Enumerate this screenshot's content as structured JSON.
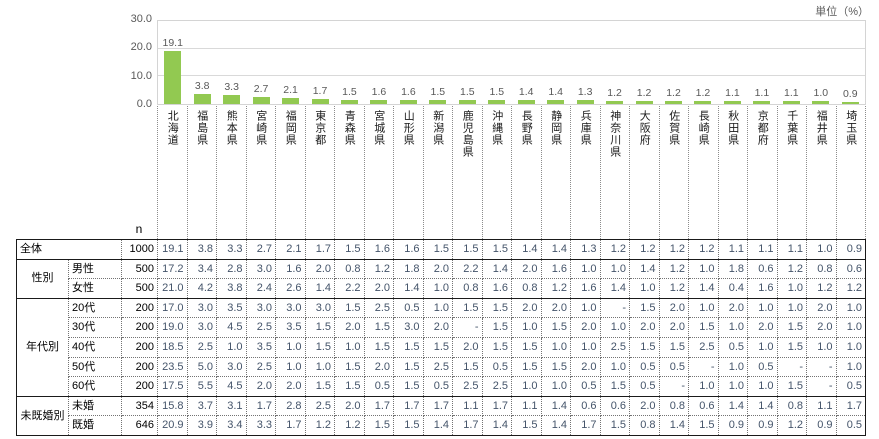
{
  "unit_label": "単位（%）",
  "chart_data": {
    "type": "bar",
    "title": "",
    "xlabel": "",
    "ylabel": "",
    "unit": "単位（%）",
    "ylim": [
      0,
      30
    ],
    "y_ticks": [
      "30.0",
      "20.0",
      "10.0",
      "0.0"
    ],
    "grid": true,
    "legend_position": "none",
    "bar_color": "#92c951",
    "categories": [
      "北海道",
      "福島県",
      "熊本県",
      "宮崎県",
      "福岡県",
      "東京都",
      "青森県",
      "宮城県",
      "山形県",
      "新潟県",
      "鹿児島県",
      "沖縄県",
      "長野県",
      "静岡県",
      "兵庫県",
      "神奈川県",
      "大阪府",
      "佐賀県",
      "長崎県",
      "秋田県",
      "京都府",
      "千葉県",
      "福井県",
      "埼玉県"
    ],
    "values": [
      19.1,
      3.8,
      3.3,
      2.7,
      2.1,
      1.7,
      1.5,
      1.6,
      1.6,
      1.5,
      1.5,
      1.5,
      1.4,
      1.4,
      1.3,
      1.2,
      1.2,
      1.2,
      1.2,
      1.1,
      1.1,
      1.1,
      1.0,
      0.9
    ],
    "bar_labels": [
      "19.1",
      "3.8",
      "3.3",
      "2.7",
      "2.1",
      "1.7",
      "1.5",
      "1.6",
      "1.6",
      "1.5",
      "1.5",
      "1.5",
      "1.4",
      "1.4",
      "1.3",
      "1.2",
      "1.2",
      "1.2",
      "1.2",
      "1.1",
      "1.1",
      "1.1",
      "1.0",
      "0.9"
    ]
  },
  "table": {
    "n_header": "n",
    "rows": [
      {
        "group": "全体",
        "group_rowspan": 1,
        "group_colspan": 2,
        "label": null,
        "n": "1000",
        "group_start": true,
        "values": [
          "19.1",
          "3.8",
          "3.3",
          "2.7",
          "2.1",
          "1.7",
          "1.5",
          "1.6",
          "1.6",
          "1.5",
          "1.5",
          "1.5",
          "1.4",
          "1.4",
          "1.3",
          "1.2",
          "1.2",
          "1.2",
          "1.2",
          "1.1",
          "1.1",
          "1.1",
          "1.0",
          "0.9"
        ]
      },
      {
        "group": "性別",
        "group_rowspan": 2,
        "label": "男性",
        "n": "500",
        "group_start": true,
        "values": [
          "17.2",
          "3.4",
          "2.8",
          "3.0",
          "1.6",
          "2.0",
          "0.8",
          "1.2",
          "1.8",
          "2.0",
          "2.2",
          "1.4",
          "2.0",
          "1.6",
          "1.0",
          "1.0",
          "1.4",
          "1.2",
          "1.0",
          "1.8",
          "0.6",
          "1.2",
          "0.8",
          "0.6"
        ]
      },
      {
        "label": "女性",
        "n": "500",
        "values": [
          "21.0",
          "4.2",
          "3.8",
          "2.4",
          "2.6",
          "1.4",
          "2.2",
          "2.0",
          "1.4",
          "1.0",
          "0.8",
          "1.6",
          "0.8",
          "1.2",
          "1.6",
          "1.4",
          "1.0",
          "1.2",
          "1.4",
          "0.4",
          "1.6",
          "1.0",
          "1.2",
          "1.2"
        ]
      },
      {
        "group": "年代別",
        "group_rowspan": 5,
        "label": "20代",
        "n": "200",
        "group_start": true,
        "values": [
          "17.0",
          "3.0",
          "3.5",
          "3.0",
          "3.0",
          "3.0",
          "1.5",
          "2.5",
          "0.5",
          "1.0",
          "1.5",
          "1.5",
          "2.0",
          "2.0",
          "1.0",
          "-",
          "1.5",
          "2.0",
          "1.0",
          "2.0",
          "1.0",
          "1.0",
          "2.0",
          "1.0"
        ]
      },
      {
        "label": "30代",
        "n": "200",
        "values": [
          "19.0",
          "3.0",
          "4.5",
          "2.5",
          "3.5",
          "1.5",
          "2.0",
          "1.5",
          "3.0",
          "2.0",
          "-",
          "1.5",
          "1.0",
          "1.5",
          "2.0",
          "1.0",
          "2.0",
          "2.0",
          "1.5",
          "1.0",
          "2.0",
          "1.5",
          "2.0",
          "1.0"
        ]
      },
      {
        "label": "40代",
        "n": "200",
        "values": [
          "18.5",
          "2.5",
          "1.0",
          "3.5",
          "1.0",
          "1.5",
          "1.0",
          "1.5",
          "1.5",
          "1.5",
          "2.0",
          "1.5",
          "1.5",
          "1.0",
          "1.0",
          "2.5",
          "1.5",
          "1.5",
          "2.5",
          "0.5",
          "1.0",
          "1.5",
          "1.0",
          "1.0"
        ]
      },
      {
        "label": "50代",
        "n": "200",
        "values": [
          "23.5",
          "5.0",
          "3.0",
          "2.5",
          "1.0",
          "1.0",
          "1.5",
          "2.0",
          "1.5",
          "2.5",
          "1.5",
          "0.5",
          "1.5",
          "1.5",
          "2.0",
          "1.0",
          "0.5",
          "0.5",
          "-",
          "1.0",
          "0.5",
          "-",
          "-",
          "1.0"
        ]
      },
      {
        "label": "60代",
        "n": "200",
        "values": [
          "17.5",
          "5.5",
          "4.5",
          "2.0",
          "2.0",
          "1.5",
          "1.5",
          "0.5",
          "1.5",
          "0.5",
          "2.5",
          "2.5",
          "1.0",
          "1.0",
          "0.5",
          "1.5",
          "0.5",
          "-",
          "1.0",
          "1.0",
          "1.0",
          "1.5",
          "-",
          "0.5"
        ]
      },
      {
        "group": "未既婚別",
        "group_rowspan": 2,
        "label": "未婚",
        "n": "354",
        "group_start": true,
        "values": [
          "15.8",
          "3.7",
          "3.1",
          "1.7",
          "2.8",
          "2.5",
          "2.0",
          "1.7",
          "1.7",
          "1.7",
          "1.1",
          "1.7",
          "1.1",
          "1.4",
          "0.6",
          "0.6",
          "2.0",
          "0.8",
          "0.6",
          "1.4",
          "1.4",
          "0.8",
          "1.1",
          "1.7"
        ]
      },
      {
        "label": "既婚",
        "n": "646",
        "values": [
          "20.9",
          "3.9",
          "3.4",
          "3.3",
          "1.7",
          "1.2",
          "1.2",
          "1.5",
          "1.5",
          "1.4",
          "1.7",
          "1.4",
          "1.5",
          "1.4",
          "1.7",
          "1.5",
          "0.8",
          "1.4",
          "1.5",
          "0.9",
          "0.9",
          "1.2",
          "0.9",
          "0.5"
        ]
      }
    ]
  }
}
